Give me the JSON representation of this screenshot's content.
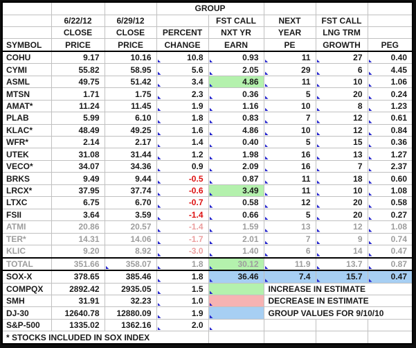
{
  "table": {
    "header": {
      "group_label": "GROUP",
      "line1": [
        "",
        "6/22/12",
        "6/29/12",
        "",
        "FST CALL",
        "NEXT",
        "FST CALL",
        ""
      ],
      "line2": [
        "",
        "CLOSE",
        "CLOSE",
        "PERCENT",
        "NXT YR",
        "YEAR",
        "LNG TRM",
        ""
      ],
      "line3": [
        "SYMBOL",
        "PRICE",
        "PRICE",
        "CHANGE",
        "EARN",
        "PE",
        "GROWTH",
        "PEG"
      ]
    },
    "rows": [
      {
        "symbol": "COHU",
        "close_6_22": "9.17",
        "close_6_29": "10.16",
        "change": "10.8",
        "earn": "0.93",
        "pe": "11",
        "growth": "27",
        "peg": "0.40",
        "markers": [
          3,
          4,
          5,
          6,
          7
        ]
      },
      {
        "symbol": "CYMI",
        "close_6_22": "55.82",
        "close_6_29": "58.95",
        "change": "5.6",
        "earn": "2.05",
        "pe": "29",
        "growth": "6",
        "peg": "4.45",
        "markers": [
          3,
          4,
          5,
          6,
          7
        ]
      },
      {
        "symbol": "ASML",
        "close_6_22": "49.75",
        "close_6_29": "51.42",
        "change": "3.4",
        "earn": "4.86",
        "pe": "11",
        "growth": "10",
        "peg": "1.06",
        "earn_bg": "increase",
        "markers": [
          3,
          4,
          5,
          6,
          7
        ]
      },
      {
        "symbol": "MTSN",
        "close_6_22": "1.71",
        "close_6_29": "1.75",
        "change": "2.3",
        "earn": "0.36",
        "pe": "5",
        "growth": "20",
        "peg": "0.24",
        "markers": [
          3,
          4,
          5,
          6,
          7
        ]
      },
      {
        "symbol": "AMAT*",
        "close_6_22": "11.24",
        "close_6_29": "11.45",
        "change": "1.9",
        "earn": "1.16",
        "pe": "10",
        "growth": "8",
        "peg": "1.23",
        "markers": [
          3,
          4,
          5,
          6,
          7
        ]
      },
      {
        "symbol": "PLAB",
        "close_6_22": "5.99",
        "close_6_29": "6.10",
        "change": "1.8",
        "earn": "0.83",
        "pe": "7",
        "growth": "12",
        "peg": "0.61",
        "markers": [
          3,
          4,
          5,
          6,
          7
        ]
      },
      {
        "symbol": "KLAC*",
        "close_6_22": "48.49",
        "close_6_29": "49.25",
        "change": "1.6",
        "earn": "4.86",
        "pe": "10",
        "growth": "12",
        "peg": "0.84",
        "markers": [
          3,
          4,
          5,
          6,
          7
        ]
      },
      {
        "symbol": "WFR*",
        "close_6_22": "2.14",
        "close_6_29": "2.17",
        "change": "1.4",
        "earn": "0.40",
        "pe": "5",
        "growth": "15",
        "peg": "0.36",
        "markers": [
          3,
          4,
          5,
          6,
          7
        ]
      },
      {
        "symbol": "UTEK",
        "close_6_22": "31.08",
        "close_6_29": "31.44",
        "change": "1.2",
        "earn": "1.98",
        "pe": "16",
        "growth": "13",
        "peg": "1.27",
        "markers": [
          3,
          4,
          5,
          6,
          7
        ]
      },
      {
        "symbol": "VECO*",
        "close_6_22": "34.07",
        "close_6_29": "34.36",
        "change": "0.9",
        "earn": "2.09",
        "pe": "16",
        "growth": "7",
        "peg": "2.37",
        "markers": [
          3,
          4,
          5,
          6,
          7
        ]
      },
      {
        "symbol": "BRKS",
        "close_6_22": "9.49",
        "close_6_29": "9.44",
        "change": "-0.5",
        "earn": "0.87",
        "pe": "11",
        "growth": "18",
        "peg": "0.60",
        "markers": [
          3,
          4,
          5,
          6,
          7
        ]
      },
      {
        "symbol": "LRCX*",
        "close_6_22": "37.95",
        "close_6_29": "37.74",
        "change": "-0.6",
        "earn": "3.49",
        "pe": "11",
        "growth": "10",
        "peg": "1.08",
        "earn_bg": "increase",
        "markers": [
          3,
          4,
          5,
          6,
          7
        ]
      },
      {
        "symbol": "LTXC",
        "close_6_22": "6.75",
        "close_6_29": "6.70",
        "change": "-0.7",
        "earn": "0.58",
        "pe": "12",
        "growth": "20",
        "peg": "0.58",
        "markers": [
          3,
          4,
          5,
          6,
          7
        ]
      },
      {
        "symbol": "FSII",
        "close_6_22": "3.64",
        "close_6_29": "3.59",
        "change": "-1.4",
        "earn": "0.66",
        "pe": "5",
        "growth": "20",
        "peg": "0.27",
        "markers": [
          3,
          4,
          5,
          6,
          7
        ]
      },
      {
        "symbol": "ATMI",
        "close_6_22": "20.86",
        "close_6_29": "20.57",
        "change": "-1.4",
        "earn": "1.59",
        "pe": "13",
        "growth": "12",
        "peg": "1.08",
        "faded": true,
        "markers": [
          3,
          4,
          5,
          6,
          7
        ]
      },
      {
        "symbol": "TER*",
        "close_6_22": "14.31",
        "close_6_29": "14.06",
        "change": "-1.7",
        "earn": "2.01",
        "pe": "7",
        "growth": "9",
        "peg": "0.74",
        "faded": true,
        "markers": [
          3,
          4,
          5,
          6,
          7
        ]
      },
      {
        "symbol": "KLIC",
        "close_6_22": "9.20",
        "close_6_29": "8.92",
        "change": "-3.0",
        "earn": "1.40",
        "pe": "6",
        "growth": "14",
        "peg": "0.47",
        "faded": true,
        "markers": [
          3,
          4,
          5,
          6,
          7
        ]
      },
      {
        "symbol": "TOTAL",
        "close_6_22": "351.66",
        "close_6_29": "358.07",
        "change": "1.8",
        "earn": "30.12",
        "pe": "11.9",
        "growth": "13.7",
        "peg": "0.87",
        "faded": true,
        "thick_top": true,
        "earn_bg": "increase",
        "markers": [
          2,
          3,
          4,
          5,
          6,
          7
        ]
      },
      {
        "symbol": "SOX-X",
        "close_6_22": "378.65",
        "close_6_29": "385.46",
        "change": "1.8",
        "earn": "36.46",
        "pe": "7.4",
        "growth": "15.7",
        "peg": "0.47",
        "thick_top": true,
        "right_bg": "group_values",
        "markers": [
          3,
          4,
          5,
          6,
          7
        ]
      },
      {
        "symbol": "COMPQX",
        "close_6_22": "2892.42",
        "close_6_29": "2935.05",
        "change": "1.5",
        "earn": "",
        "pe": "",
        "growth": "",
        "peg": "",
        "earn_bg": "increase",
        "legend": "INCREASE IN ESTIMATE",
        "markers": [
          3,
          4
        ]
      },
      {
        "symbol": "SMH",
        "close_6_22": "31.91",
        "close_6_29": "32.23",
        "change": "1.0",
        "earn": "",
        "pe": "",
        "growth": "",
        "peg": "",
        "earn_bg": "decrease",
        "legend": "DECREASE IN ESTIMATE",
        "markers": [
          3,
          4
        ]
      },
      {
        "symbol": "DJ-30",
        "close_6_22": "12640.78",
        "close_6_29": "12880.09",
        "change": "1.9",
        "earn": "",
        "pe": "",
        "growth": "",
        "peg": "",
        "earn_bg": "group_values",
        "legend": "GROUP VALUES FOR 9/10/10",
        "markers": [
          3,
          4
        ]
      },
      {
        "symbol": "S&P-500",
        "close_6_22": "1335.02",
        "close_6_29": "1362.16",
        "change": "2.0",
        "earn": "",
        "pe": "",
        "growth": "",
        "peg": "",
        "markers": [
          3,
          4
        ]
      }
    ],
    "footer_note": "* STOCKS INCLUDED IN SOX INDEX"
  },
  "colors": {
    "increase": "#b4f1ad",
    "decrease": "#f6b3b3",
    "group_values": "#a7cff3",
    "negative_text": "#dd1111",
    "faded_text": "#9d9d9d",
    "faded_negative": "#eb9e9e",
    "grid_line": "#c0c0c0",
    "marker": "#2222cc"
  }
}
